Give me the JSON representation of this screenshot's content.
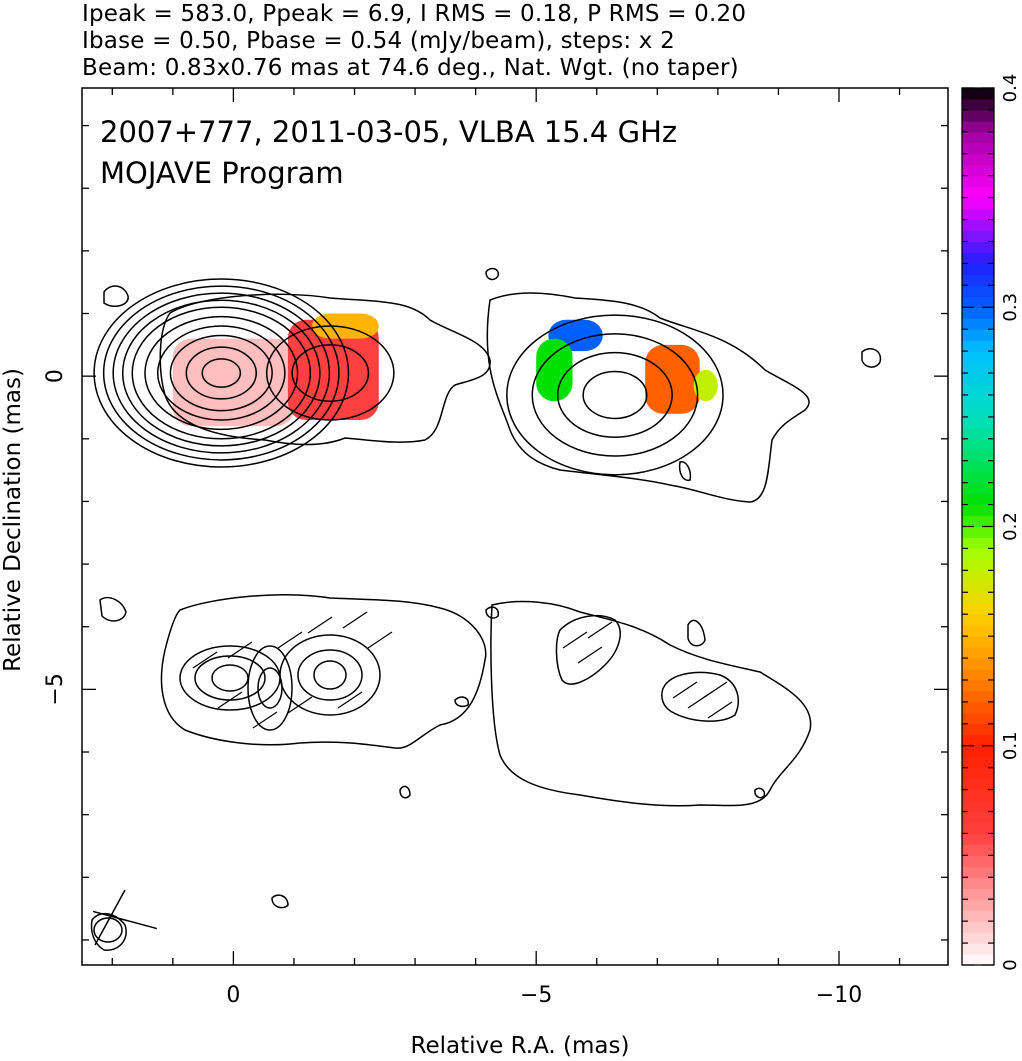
{
  "header": {
    "line1": "Ipeak = 583.0, Ppeak = 6.9, I RMS = 0.18, P RMS = 0.20",
    "line2": "Ibase = 0.50, Pbase = 0.54 (mJy/beam), steps: x 2",
    "line3": "Beam: 0.83x0.76 mas at 74.6 deg., Nat. Wgt. (no taper)"
  },
  "chart_data": {
    "type": "heatmap",
    "annotations": [
      "2007+777, 2011-03-05, VLBA 15.4 GHz",
      "MOJAVE Program"
    ],
    "xlabel": "Relative R.A. (mas)",
    "ylabel": "Relative Declination (mas)",
    "xlim": [
      2.5,
      -11.8
    ],
    "ylim": [
      -9.4,
      4.6
    ],
    "x_ticks": [
      {
        "v": 0,
        "label": "0"
      },
      {
        "v": -5,
        "label": "−5"
      },
      {
        "v": -10,
        "label": "−10"
      }
    ],
    "y_ticks": [
      {
        "v": 0,
        "label": "0"
      },
      {
        "v": -5,
        "label": "−5"
      }
    ],
    "colorbar": {
      "range": [
        0,
        0.4
      ],
      "ticks": [
        {
          "v": 0,
          "label": "0"
        },
        {
          "v": 0.1,
          "label": "0.1"
        },
        {
          "v": 0.2,
          "label": "0.2"
        },
        {
          "v": 0.3,
          "label": "0.3"
        },
        {
          "v": 0.4,
          "label": "0.4"
        }
      ]
    },
    "stokes_I_components": [
      {
        "x": 0.2,
        "y": 0.05,
        "contours_mas": [
          0.3,
          0.55,
          0.8,
          1.0,
          1.2,
          1.4,
          1.55,
          1.7,
          1.85,
          2.0
        ]
      },
      {
        "x": -1.6,
        "y": 0.05,
        "contours_mas": [
          0.6,
          1.0
        ]
      },
      {
        "x": -6.3,
        "y": -0.3,
        "contours_mas": [
          0.5,
          0.9,
          1.3,
          1.7
        ]
      }
    ],
    "fractional_polarization_patches": [
      {
        "x_range": [
          1.0,
          -1.0
        ],
        "y_range": [
          0.6,
          -0.8
        ],
        "value": 0.02
      },
      {
        "x_range": [
          -0.9,
          -2.4
        ],
        "y_range": [
          0.9,
          -0.7
        ],
        "value": 0.06
      },
      {
        "x_range": [
          -1.3,
          -2.4
        ],
        "y_range": [
          1.0,
          0.6
        ],
        "value": 0.15
      },
      {
        "x_range": [
          -5.2,
          -6.1
        ],
        "y_range": [
          0.9,
          0.4
        ],
        "value": 0.3
      },
      {
        "x_range": [
          -5.0,
          -5.6
        ],
        "y_range": [
          0.6,
          -0.4
        ],
        "value": 0.21
      },
      {
        "x_range": [
          -6.8,
          -7.7
        ],
        "y_range": [
          0.5,
          -0.6
        ],
        "value": 0.12
      },
      {
        "x_range": [
          -7.6,
          -8.0
        ],
        "y_range": [
          0.1,
          -0.4
        ],
        "value": 0.18
      }
    ]
  }
}
